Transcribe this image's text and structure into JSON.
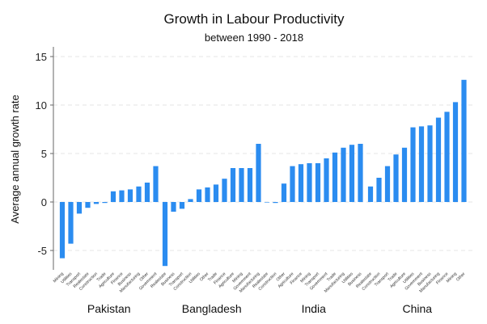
{
  "chart_data": {
    "type": "bar",
    "title": "Growth in Labour Productivity",
    "subtitle": "between 1990 - 2018",
    "ylabel": "Average annual growth rate",
    "xlabel": "",
    "ylim": [
      -7,
      16
    ],
    "yticks": [
      -5,
      0,
      5,
      10,
      15
    ],
    "grid": true,
    "legend": "none",
    "bar_color": "#2b8cf0",
    "groups": [
      {
        "name": "Pakistan",
        "categories": [
          "Mining",
          "Utilities",
          "Transport",
          "Realestate",
          "Construction",
          "Trade",
          "Agriculture",
          "Finance",
          "Business",
          "Manufacturing",
          "Other",
          "Government"
        ],
        "values": [
          -5.8,
          -4.3,
          -1.2,
          -0.6,
          -0.2,
          -0.1,
          1.1,
          1.2,
          1.3,
          1.6,
          2.0,
          3.7
        ]
      },
      {
        "name": "Bangladesh",
        "categories": [
          "Realestate",
          "Business",
          "Transport",
          "Construction",
          "Utilities",
          "Other",
          "Trade",
          "Finance",
          "Agriculture",
          "Mining",
          "Government",
          "Manufacturing"
        ],
        "values": [
          -6.6,
          -1.0,
          -0.7,
          0.3,
          1.3,
          1.5,
          1.8,
          2.4,
          3.5,
          3.5,
          3.5,
          6.0
        ]
      },
      {
        "name": "India",
        "categories": [
          "Realestate",
          "Construction",
          "Other",
          "Agriculture",
          "Finance",
          "Mining",
          "Transport",
          "Government",
          "Trade",
          "Manufacturing",
          "Utilities",
          "Business"
        ],
        "values": [
          0.0,
          -0.1,
          1.9,
          3.7,
          3.9,
          4.0,
          4.0,
          4.5,
          5.1,
          5.6,
          5.9,
          6.0
        ]
      },
      {
        "name": "China",
        "categories": [
          "Realestate",
          "Construction",
          "Transport",
          "Trade",
          "Agriculture",
          "Utilities",
          "Government",
          "Business",
          "Manufacturing",
          "Finance",
          "Mining",
          "Other"
        ],
        "values": [
          1.6,
          2.5,
          3.7,
          4.9,
          5.6,
          7.7,
          7.8,
          7.9,
          8.7,
          9.3,
          10.3,
          12.6
        ]
      }
    ]
  }
}
